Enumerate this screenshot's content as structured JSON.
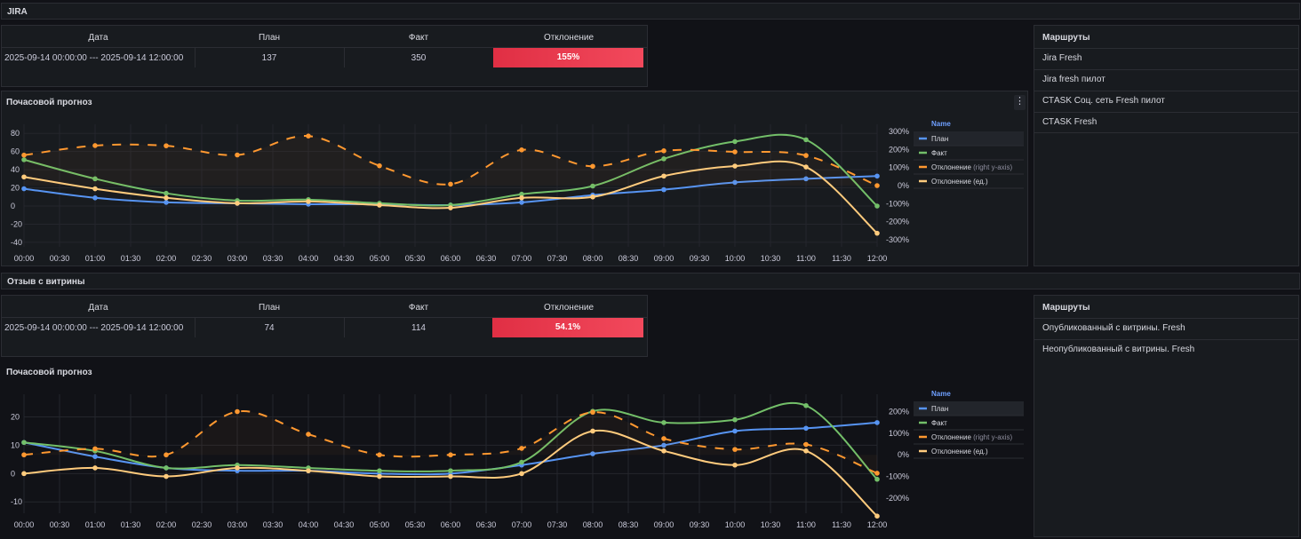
{
  "sections": [
    {
      "header": "JIRA",
      "table": {
        "columns": [
          "Дата",
          "План",
          "Факт",
          "Отклонение"
        ],
        "row": {
          "date": "2025-09-14 00:00:00 --- 2025-09-14 12:00:00",
          "plan": "137",
          "fact": "350",
          "deviation": "155%"
        }
      },
      "routes": {
        "title": "Маршруты",
        "items": [
          "Jira Fresh",
          "Jira fresh пилот",
          "СТASK Соц. сеть Fresh пилот",
          "СТASK Fresh"
        ]
      }
    },
    {
      "header": "Отзыв с витрины",
      "table": {
        "columns": [
          "Дата",
          "План",
          "Факт",
          "Отклонение"
        ],
        "row": {
          "date": "2025-09-14 00:00:00 --- 2025-09-14 12:00:00",
          "plan": "74",
          "fact": "114",
          "deviation": "54.1%"
        }
      },
      "routes": {
        "title": "Маршруты",
        "items": [
          "Опубликованный с витрины. Fresh",
          "Неопубликованный с витрины. Fresh"
        ]
      }
    }
  ],
  "menu_icon": "more-vertical-icon",
  "colors": {
    "plan": "#5794f2",
    "fact": "#73bf69",
    "deviation_pct": "#ff9830",
    "deviation_units": "#ffcb7d",
    "deviation_cell": "#e02f44"
  },
  "chart_data": [
    {
      "type": "line",
      "title": "Почасовой прогноз",
      "x": [
        "00:00",
        "01:00",
        "02:00",
        "03:00",
        "04:00",
        "05:00",
        "06:00",
        "07:00",
        "08:00",
        "09:00",
        "10:00",
        "11:00",
        "12:00"
      ],
      "x_ticks": [
        "00:00",
        "00:30",
        "01:00",
        "01:30",
        "02:00",
        "02:30",
        "03:00",
        "03:30",
        "04:00",
        "04:30",
        "05:00",
        "05:30",
        "06:00",
        "06:30",
        "07:00",
        "07:30",
        "08:00",
        "08:30",
        "09:00",
        "09:30",
        "10:00",
        "10:30",
        "11:00",
        "11:30",
        "12:00"
      ],
      "ylim": [
        -45,
        90
      ],
      "y_ticks": [
        "80",
        "60",
        "40",
        "20",
        "0",
        "-20",
        "-40"
      ],
      "y_tick_values": [
        80,
        60,
        40,
        20,
        0,
        -20,
        -40
      ],
      "y2lim": [
        -340,
        340
      ],
      "y2_ticks": [
        "300%",
        "200%",
        "100%",
        "0%",
        "-100%",
        "-200%",
        "-300%"
      ],
      "y2_tick_values": [
        300,
        200,
        100,
        0,
        -100,
        -200,
        -300
      ],
      "grid": true,
      "legend": {
        "title": "Name",
        "placement": "right"
      },
      "series": [
        {
          "name": "План",
          "axis": "left",
          "style": "solid",
          "color": "#5794f2",
          "values": [
            19,
            9,
            4,
            3,
            2,
            2,
            1,
            4,
            12,
            18,
            26,
            30,
            33
          ]
        },
        {
          "name": "Факт",
          "axis": "left",
          "style": "solid",
          "color": "#73bf69",
          "values": [
            51,
            30,
            14,
            6,
            7,
            3,
            1,
            13,
            22,
            52,
            71,
            73,
            0
          ]
        },
        {
          "name": "Отклонение",
          "suffix": "(right y-axis)",
          "axis": "right",
          "style": "dashed",
          "color": "#ff9830",
          "values": [
            169,
            222,
            221,
            170,
            275,
            110,
            8,
            198,
            107,
            193,
            187,
            167,
            0
          ]
        },
        {
          "name": "Отклонение (ед.)",
          "axis": "left",
          "style": "solid",
          "color": "#ffcb7d",
          "values": [
            32,
            19,
            9,
            3,
            5,
            1,
            -2,
            9,
            10,
            33,
            44,
            43,
            -30
          ]
        }
      ]
    },
    {
      "type": "line",
      "title": "Почасовой прогноз",
      "x": [
        "00:00",
        "01:00",
        "02:00",
        "03:00",
        "04:00",
        "05:00",
        "06:00",
        "07:00",
        "08:00",
        "09:00",
        "10:00",
        "11:00",
        "12:00"
      ],
      "x_ticks": [
        "00:00",
        "00:30",
        "01:00",
        "01:30",
        "02:00",
        "02:30",
        "03:00",
        "03:30",
        "04:00",
        "04:30",
        "05:00",
        "05:30",
        "06:00",
        "06:30",
        "07:00",
        "07:30",
        "08:00",
        "08:30",
        "09:00",
        "09:30",
        "10:00",
        "10:30",
        "11:00",
        "11:30",
        "12:00"
      ],
      "ylim": [
        -14,
        28
      ],
      "y_ticks": [
        "20",
        "10",
        "0",
        "-10"
      ],
      "y_tick_values": [
        20,
        10,
        0,
        -10
      ],
      "y2lim": [
        -270,
        280
      ],
      "y2_ticks": [
        "200%",
        "100%",
        "0%",
        "-100%",
        "-200%"
      ],
      "y2_tick_values": [
        200,
        100,
        0,
        -100,
        -200
      ],
      "grid": true,
      "legend": {
        "title": "Name",
        "placement": "right"
      },
      "series": [
        {
          "name": "План",
          "axis": "left",
          "style": "solid",
          "color": "#5794f2",
          "values": [
            11,
            6,
            2,
            1,
            1,
            0,
            0,
            3,
            7,
            10,
            15,
            16,
            18
          ]
        },
        {
          "name": "Факт",
          "axis": "left",
          "style": "solid",
          "color": "#73bf69",
          "values": [
            11,
            8,
            2,
            3,
            2,
            1,
            1,
            4,
            22,
            18,
            19,
            24,
            -2
          ]
        },
        {
          "name": "Отклонение",
          "suffix": "(right y-axis)",
          "axis": "right",
          "style": "dashed",
          "color": "#ff9830",
          "values": [
            0,
            28,
            0,
            200,
            95,
            0,
            0,
            30,
            197,
            75,
            25,
            48,
            -85
          ]
        },
        {
          "name": "Отклонение (ед.)",
          "axis": "left",
          "style": "solid",
          "color": "#ffcb7d",
          "values": [
            0,
            2,
            -1,
            2,
            1,
            -1,
            -1,
            0,
            15,
            8,
            3,
            8,
            -15
          ]
        }
      ]
    }
  ]
}
